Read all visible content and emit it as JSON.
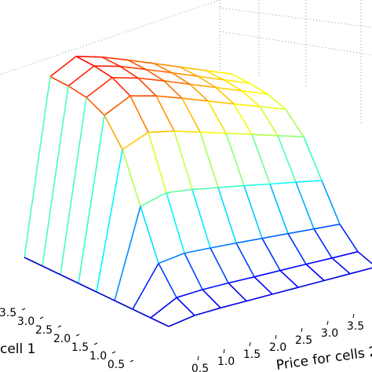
{
  "chart_data": {
    "type": "surface",
    "xlabel": "cell 1",
    "ylabel": "Price for cells 2",
    "x": [
      0,
      0.5,
      1,
      1.5,
      2,
      2.5,
      3,
      3.5,
      4
    ],
    "y": [
      0,
      0.5,
      1,
      1.5,
      2,
      2.5,
      3,
      3.5,
      4
    ],
    "z": [
      [
        0.08,
        0.097,
        0.099,
        0.098,
        0.097,
        0.096,
        0.095,
        0.094,
        0.093
      ],
      [
        0.08,
        0.136,
        0.14,
        0.138,
        0.134,
        0.131,
        0.128,
        0.124,
        0.121
      ],
      [
        0.08,
        0.245,
        0.258,
        0.25,
        0.241,
        0.231,
        0.221,
        0.211,
        0.201
      ],
      [
        0.08,
        0.45,
        0.478,
        0.462,
        0.44,
        0.418,
        0.395,
        0.373,
        0.35
      ],
      [
        0.08,
        0.655,
        0.698,
        0.673,
        0.639,
        0.604,
        0.569,
        0.534,
        0.499
      ],
      [
        0.08,
        0.764,
        0.816,
        0.786,
        0.746,
        0.704,
        0.662,
        0.621,
        0.579
      ],
      [
        0.08,
        0.803,
        0.857,
        0.825,
        0.783,
        0.739,
        0.695,
        0.651,
        0.607
      ],
      [
        0.08,
        0.815,
        0.87,
        0.838,
        0.795,
        0.751,
        0.706,
        0.661,
        0.616
      ],
      [
        0.08,
        0.818,
        0.874,
        0.841,
        0.798,
        0.754,
        0.709,
        0.664,
        0.619
      ]
    ],
    "xlim": [
      0,
      4
    ],
    "ylim": [
      0,
      4
    ],
    "zlim": [
      0,
      1
    ],
    "xticks": [
      0.5,
      {
        "value": 1,
        "label": "1.0"
      },
      1.5,
      {
        "value": 2,
        "label": "2.0"
      },
      2.5,
      {
        "value": 3,
        "label": "3.0"
      },
      3.5
    ],
    "yticks": [
      0.5,
      {
        "value": 1,
        "label": "1.0"
      },
      1.5,
      {
        "value": 2,
        "label": "2.0"
      },
      2.5,
      {
        "value": 3,
        "label": "3.0"
      },
      3.5
    ],
    "colormap": "jet",
    "grid": true
  }
}
